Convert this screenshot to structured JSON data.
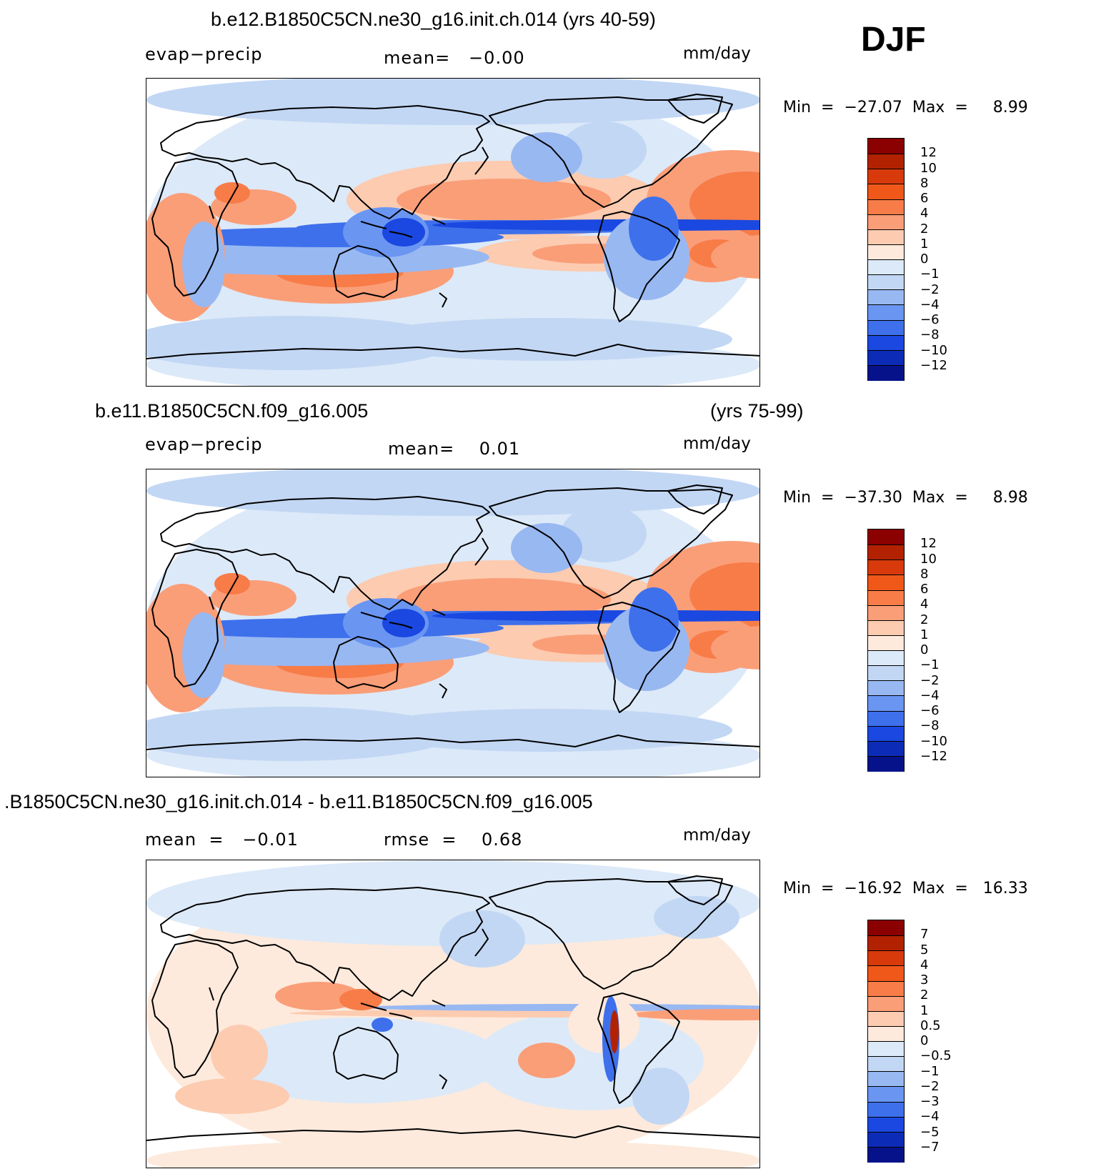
{
  "season": "DJF",
  "panels": [
    {
      "title": "b.e12.B1850C5CN.ne30_g16.init.ch.014 (yrs 40-59)",
      "title_right": "",
      "left_label": "evap−precip",
      "stat_text": "mean=   −0.00",
      "stat2_text": "",
      "units": "mm/day",
      "minmax": "Min  =  −27.07  Max  =     8.99",
      "colorbar_labels": [
        "12",
        "10",
        "8",
        "6",
        "4",
        "2",
        "1",
        "0",
        "−1",
        "−2",
        "−4",
        "−6",
        "−8",
        "−10",
        "−12"
      ],
      "colorbar_colors": [
        "#8b0000",
        "#b22200",
        "#d83a0c",
        "#f0581a",
        "#f77c48",
        "#fa9e78",
        "#fccbb0",
        "#fdeadc",
        "#dce9f8",
        "#c2d7f4",
        "#98b8f2",
        "#6a96f2",
        "#3e70ec",
        "#1a48e0",
        "#0c2cb8",
        "#06128a"
      ]
    },
    {
      "title": "b.e11.B1850C5CN.f09_g16.005",
      "title_right": "(yrs 75-99)",
      "left_label": "evap−precip",
      "stat_text": "mean=    0.01",
      "stat2_text": "",
      "units": "mm/day",
      "minmax": "Min  =  −37.30  Max  =     8.98",
      "colorbar_labels": [
        "12",
        "10",
        "8",
        "6",
        "4",
        "2",
        "1",
        "0",
        "−1",
        "−2",
        "−4",
        "−6",
        "−8",
        "−10",
        "−12"
      ],
      "colorbar_colors": [
        "#8b0000",
        "#b22200",
        "#d83a0c",
        "#f0581a",
        "#f77c48",
        "#fa9e78",
        "#fccbb0",
        "#fdeadc",
        "#dce9f8",
        "#c2d7f4",
        "#98b8f2",
        "#6a96f2",
        "#3e70ec",
        "#1a48e0",
        "#0c2cb8",
        "#06128a"
      ]
    },
    {
      "title": ".B1850C5CN.ne30_g16.init.ch.014 - b.e11.B1850C5CN.f09_g16.005",
      "title_right": "",
      "left_label": "mean  =   −0.01",
      "stat_text": "rmse  =    0.68",
      "stat2_text": "",
      "units": "mm/day",
      "minmax": "Min  =  −16.92  Max  =   16.33",
      "colorbar_labels": [
        "7",
        "5",
        "4",
        "3",
        "2",
        "1",
        "0.5",
        "0",
        "−0.5",
        "−1",
        "−2",
        "−3",
        "−4",
        "−5",
        "−7"
      ],
      "colorbar_colors": [
        "#8b0000",
        "#b22200",
        "#d83a0c",
        "#f0581a",
        "#f77c48",
        "#fa9e78",
        "#fccbb0",
        "#fdeadc",
        "#dce9f8",
        "#c2d7f4",
        "#98b8f2",
        "#6a96f2",
        "#3e70ec",
        "#1a48e0",
        "#0c2cb8",
        "#06128a"
      ]
    }
  ]
}
